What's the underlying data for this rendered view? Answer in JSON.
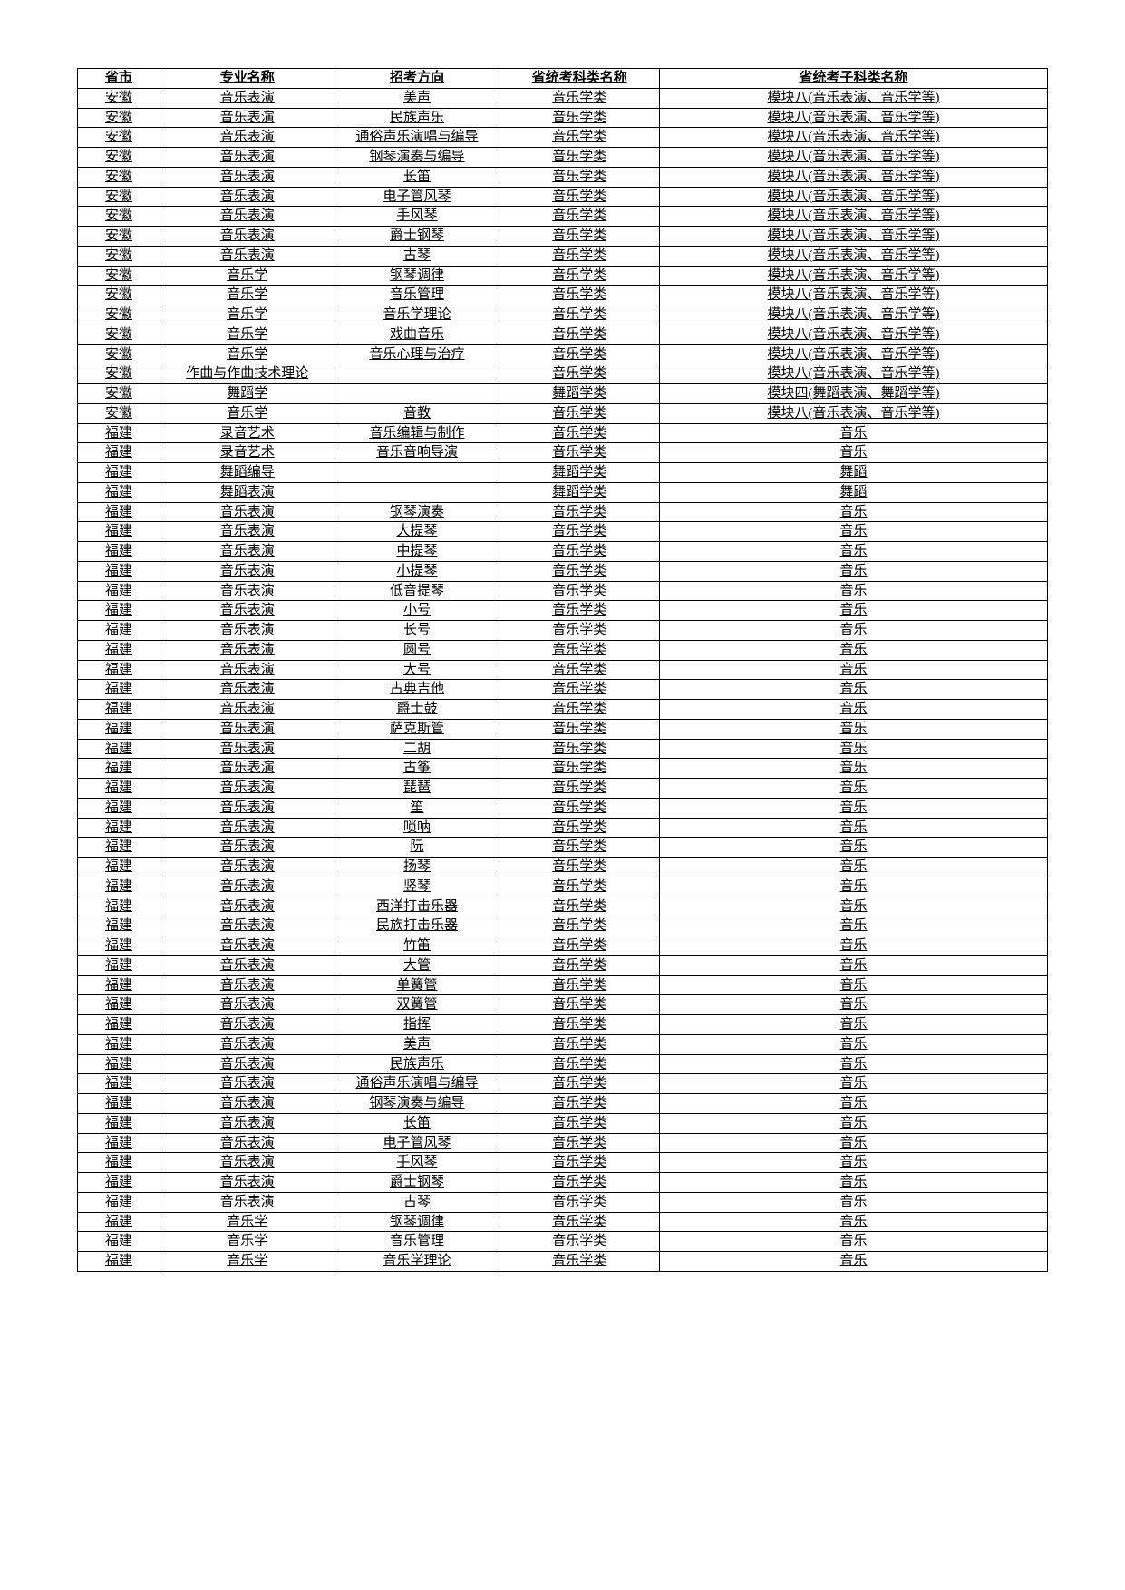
{
  "table": {
    "text_color": "#000000",
    "border_color": "#000000",
    "background_color": "#ffffff",
    "header_fontsize": 15,
    "cell_fontsize": 15,
    "columns": [
      "省市",
      "专业名称",
      "招考方向",
      "省统考科类名称",
      "省统考子科类名称"
    ],
    "rows": [
      [
        "安徽",
        "音乐表演",
        "美声",
        "音乐学类",
        "模块八(音乐表演、音乐学等)"
      ],
      [
        "安徽",
        "音乐表演",
        "民族声乐",
        "音乐学类",
        "模块八(音乐表演、音乐学等)"
      ],
      [
        "安徽",
        "音乐表演",
        "通俗声乐演唱与编导",
        "音乐学类",
        "模块八(音乐表演、音乐学等)"
      ],
      [
        "安徽",
        "音乐表演",
        "钢琴演奏与编导",
        "音乐学类",
        "模块八(音乐表演、音乐学等)"
      ],
      [
        "安徽",
        "音乐表演",
        "长笛",
        "音乐学类",
        "模块八(音乐表演、音乐学等)"
      ],
      [
        "安徽",
        "音乐表演",
        "电子管风琴",
        "音乐学类",
        "模块八(音乐表演、音乐学等)"
      ],
      [
        "安徽",
        "音乐表演",
        "手风琴",
        "音乐学类",
        "模块八(音乐表演、音乐学等)"
      ],
      [
        "安徽",
        "音乐表演",
        "爵士钢琴",
        "音乐学类",
        "模块八(音乐表演、音乐学等)"
      ],
      [
        "安徽",
        "音乐表演",
        "古琴",
        "音乐学类",
        "模块八(音乐表演、音乐学等)"
      ],
      [
        "安徽",
        "音乐学",
        "钢琴调律",
        "音乐学类",
        "模块八(音乐表演、音乐学等)"
      ],
      [
        "安徽",
        "音乐学",
        "音乐管理",
        "音乐学类",
        "模块八(音乐表演、音乐学等)"
      ],
      [
        "安徽",
        "音乐学",
        "音乐学理论",
        "音乐学类",
        "模块八(音乐表演、音乐学等)"
      ],
      [
        "安徽",
        "音乐学",
        "戏曲音乐",
        "音乐学类",
        "模块八(音乐表演、音乐学等)"
      ],
      [
        "安徽",
        "音乐学",
        "音乐心理与治疗",
        "音乐学类",
        "模块八(音乐表演、音乐学等)"
      ],
      [
        "安徽",
        "作曲与作曲技术理论",
        "",
        "音乐学类",
        "模块八(音乐表演、音乐学等)"
      ],
      [
        "安徽",
        "舞蹈学",
        "",
        "舞蹈学类",
        "模块四(舞蹈表演、舞蹈学等)"
      ],
      [
        "安徽",
        "音乐学",
        "音教",
        "音乐学类",
        "模块八(音乐表演、音乐学等)"
      ],
      [
        "福建",
        "录音艺术",
        "音乐编辑与制作",
        "音乐学类",
        "音乐"
      ],
      [
        "福建",
        "录音艺术",
        "音乐音响导演",
        "音乐学类",
        "音乐"
      ],
      [
        "福建",
        "舞蹈编导",
        "",
        "舞蹈学类",
        "舞蹈"
      ],
      [
        "福建",
        "舞蹈表演",
        "",
        "舞蹈学类",
        "舞蹈"
      ],
      [
        "福建",
        "音乐表演",
        "钢琴演奏",
        "音乐学类",
        "音乐"
      ],
      [
        "福建",
        "音乐表演",
        "大提琴",
        "音乐学类",
        "音乐"
      ],
      [
        "福建",
        "音乐表演",
        "中提琴",
        "音乐学类",
        "音乐"
      ],
      [
        "福建",
        "音乐表演",
        "小提琴",
        "音乐学类",
        "音乐"
      ],
      [
        "福建",
        "音乐表演",
        "低音提琴",
        "音乐学类",
        "音乐"
      ],
      [
        "福建",
        "音乐表演",
        "小号",
        "音乐学类",
        "音乐"
      ],
      [
        "福建",
        "音乐表演",
        "长号",
        "音乐学类",
        "音乐"
      ],
      [
        "福建",
        "音乐表演",
        "圆号",
        "音乐学类",
        "音乐"
      ],
      [
        "福建",
        "音乐表演",
        "大号",
        "音乐学类",
        "音乐"
      ],
      [
        "福建",
        "音乐表演",
        "古典吉他",
        "音乐学类",
        "音乐"
      ],
      [
        "福建",
        "音乐表演",
        "爵士鼓",
        "音乐学类",
        "音乐"
      ],
      [
        "福建",
        "音乐表演",
        "萨克斯管",
        "音乐学类",
        "音乐"
      ],
      [
        "福建",
        "音乐表演",
        "二胡",
        "音乐学类",
        "音乐"
      ],
      [
        "福建",
        "音乐表演",
        "古筝",
        "音乐学类",
        "音乐"
      ],
      [
        "福建",
        "音乐表演",
        "琵琶",
        "音乐学类",
        "音乐"
      ],
      [
        "福建",
        "音乐表演",
        "笙",
        "音乐学类",
        "音乐"
      ],
      [
        "福建",
        "音乐表演",
        "唢呐",
        "音乐学类",
        "音乐"
      ],
      [
        "福建",
        "音乐表演",
        "阮",
        "音乐学类",
        "音乐"
      ],
      [
        "福建",
        "音乐表演",
        "扬琴",
        "音乐学类",
        "音乐"
      ],
      [
        "福建",
        "音乐表演",
        "竖琴",
        "音乐学类",
        "音乐"
      ],
      [
        "福建",
        "音乐表演",
        "西洋打击乐器",
        "音乐学类",
        "音乐"
      ],
      [
        "福建",
        "音乐表演",
        "民族打击乐器",
        "音乐学类",
        "音乐"
      ],
      [
        "福建",
        "音乐表演",
        "竹笛",
        "音乐学类",
        "音乐"
      ],
      [
        "福建",
        "音乐表演",
        "大管",
        "音乐学类",
        "音乐"
      ],
      [
        "福建",
        "音乐表演",
        "单簧管",
        "音乐学类",
        "音乐"
      ],
      [
        "福建",
        "音乐表演",
        "双簧管",
        "音乐学类",
        "音乐"
      ],
      [
        "福建",
        "音乐表演",
        "指挥",
        "音乐学类",
        "音乐"
      ],
      [
        "福建",
        "音乐表演",
        "美声",
        "音乐学类",
        "音乐"
      ],
      [
        "福建",
        "音乐表演",
        "民族声乐",
        "音乐学类",
        "音乐"
      ],
      [
        "福建",
        "音乐表演",
        "通俗声乐演唱与编导",
        "音乐学类",
        "音乐"
      ],
      [
        "福建",
        "音乐表演",
        "钢琴演奏与编导",
        "音乐学类",
        "音乐"
      ],
      [
        "福建",
        "音乐表演",
        "长笛",
        "音乐学类",
        "音乐"
      ],
      [
        "福建",
        "音乐表演",
        "电子管风琴",
        "音乐学类",
        "音乐"
      ],
      [
        "福建",
        "音乐表演",
        "手风琴",
        "音乐学类",
        "音乐"
      ],
      [
        "福建",
        "音乐表演",
        "爵士钢琴",
        "音乐学类",
        "音乐"
      ],
      [
        "福建",
        "音乐表演",
        "古琴",
        "音乐学类",
        "音乐"
      ],
      [
        "福建",
        "音乐学",
        "钢琴调律",
        "音乐学类",
        "音乐"
      ],
      [
        "福建",
        "音乐学",
        "音乐管理",
        "音乐学类",
        "音乐"
      ],
      [
        "福建",
        "音乐学",
        "音乐学理论",
        "音乐学类",
        "音乐"
      ]
    ]
  }
}
